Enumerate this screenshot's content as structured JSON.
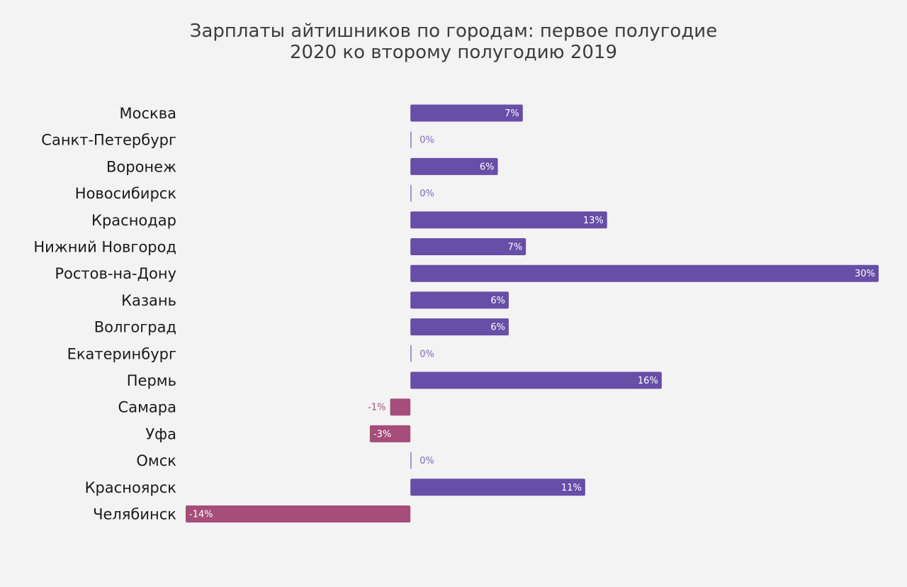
{
  "chart_data": {
    "type": "bar",
    "orientation": "horizontal",
    "title": "Зарплаты айтишников по городам: первое полугодие 2020 ко второму полугодию 2019",
    "title_lines": [
      "Зарплаты айтишников по городам: первое полугодие",
      "2020 ко второму полугодию 2019"
    ],
    "categories": [
      "Москва",
      "Санкт-Петербург",
      "Воронеж",
      "Новосибирск",
      "Краснодар",
      "Нижний Новгород",
      "Ростов-на-Дону",
      "Казань",
      "Волгоград",
      "Екатеринбург",
      "Пермь",
      "Самара",
      "Уфа",
      "Омск",
      "Красноярск",
      "Челябинск"
    ],
    "values": [
      7.2,
      0,
      5.6,
      0,
      12.6,
      7.4,
      30,
      6.3,
      6.3,
      0,
      16.1,
      -1.3,
      -2.6,
      0,
      11.2,
      -14.4
    ],
    "labels": [
      "7%",
      "0%",
      "6%",
      "0%",
      "13%",
      "7%",
      "30%",
      "6%",
      "6%",
      "0%",
      "16%",
      "-1%",
      "-3%",
      "0%",
      "11%",
      "-14%"
    ],
    "xlim": [
      -14.4,
      30
    ],
    "xlabel": "",
    "ylabel": "",
    "grid": false,
    "legend": "none",
    "colors": {
      "positive": "#674ea7",
      "negative": "#a64d79",
      "background": "#f3f3f3",
      "positive_label_outside": "#7b68b5",
      "negative_label_outside": "#a64d79"
    }
  }
}
